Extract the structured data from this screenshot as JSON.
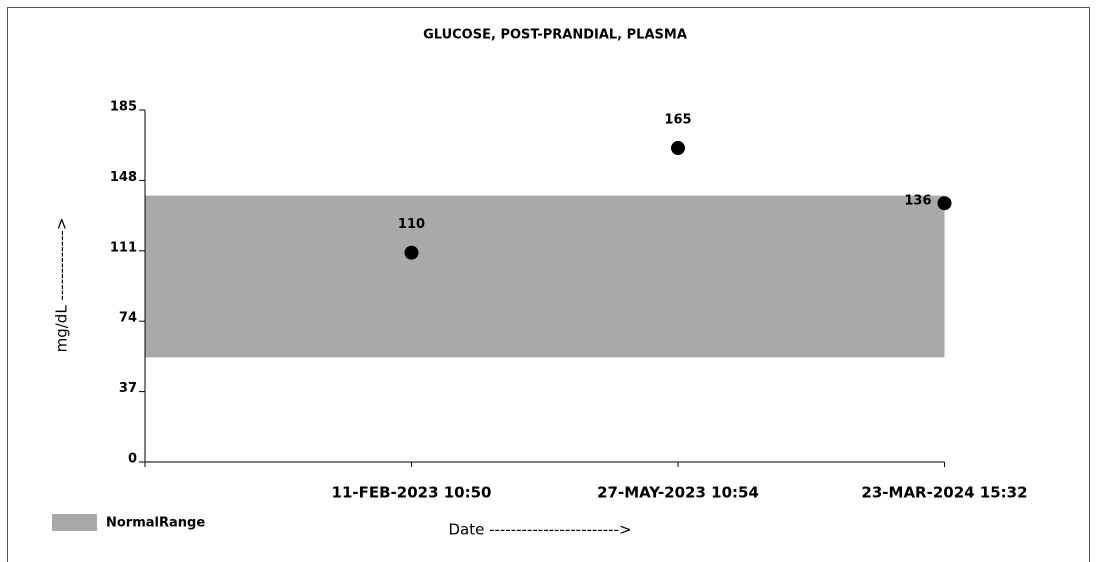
{
  "chart_data": {
    "type": "scatter",
    "title": "GLUCOSE, POST-PRANDIAL, PLASMA",
    "x_label": "Date ------------------------>",
    "y_label": "mg/dL ------------->",
    "categories": [
      "11-FEB-2023 10:50",
      "27-MAY-2023 10:54",
      "23-MAR-2024 15:32"
    ],
    "values": [
      110,
      165,
      136
    ],
    "color": "#000000",
    "normal_range": {
      "name": "NormalRange",
      "low": 55,
      "high": 140,
      "color": "#a9a9a9"
    },
    "ylim": [
      0,
      185
    ],
    "yticks": [
      0,
      37,
      74,
      111,
      148,
      185
    ]
  }
}
